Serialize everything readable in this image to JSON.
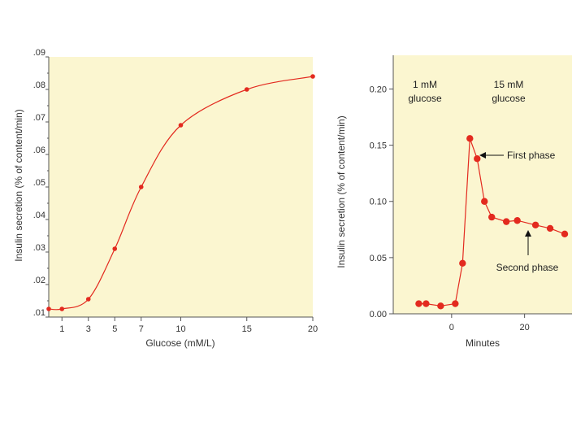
{
  "colors": {
    "panel_bg": "#fbf6d0",
    "series": "#e32a1f",
    "axis": "#555555",
    "text": "#333333"
  },
  "chart_data": [
    {
      "type": "line",
      "title": "",
      "xlabel": "Glucose (mM/L)",
      "ylabel": "Insulin secretion (% of content/min)",
      "xlim": [
        0,
        20
      ],
      "ylim": [
        0.01,
        0.09
      ],
      "x_ticks": [
        1,
        3,
        5,
        7,
        10,
        15,
        20
      ],
      "x_tick_labels": [
        "1",
        "3",
        "5",
        "7",
        "10",
        "15",
        "20"
      ],
      "y_ticks": [
        0.01,
        0.02,
        0.03,
        0.04,
        0.05,
        0.06,
        0.07,
        0.08,
        0.09
      ],
      "y_tick_labels": [
        ".01",
        ".02",
        ".03",
        ".04",
        ".05",
        ".06",
        ".07",
        ".08",
        ".09"
      ],
      "series": [
        {
          "name": "Insulin secretion",
          "x": [
            0,
            1,
            3,
            5,
            7,
            10,
            15,
            20
          ],
          "y": [
            0.0125,
            0.0125,
            0.0155,
            0.031,
            0.05,
            0.069,
            0.08,
            0.084
          ]
        }
      ]
    },
    {
      "type": "line",
      "title": "",
      "xlabel": "Minutes",
      "ylabel": "Insulin secretion (% of content/min)",
      "xlim": [
        -16,
        33
      ],
      "ylim": [
        0,
        0.23
      ],
      "x_ticks": [
        0,
        20
      ],
      "x_tick_labels": [
        "0",
        "20"
      ],
      "y_ticks": [
        0,
        0.05,
        0.1,
        0.15,
        0.2
      ],
      "y_tick_labels": [
        "0.00",
        "0.05",
        "0.10",
        "0.15",
        "0.20"
      ],
      "series": [
        {
          "name": "Insulin secretion",
          "x": [
            -9,
            -7,
            -3,
            1,
            3,
            5,
            7,
            9,
            11,
            15,
            18,
            23,
            27,
            31
          ],
          "y": [
            0.009,
            0.009,
            0.007,
            0.009,
            0.045,
            0.156,
            0.138,
            0.1,
            0.086,
            0.082,
            0.083,
            0.079,
            0.076,
            0.071
          ]
        }
      ],
      "annotations": {
        "region1_line1": "1 mM",
        "region1_line2": "glucose",
        "region2_line1": "15 mM",
        "region2_line2": "glucose",
        "first_phase": "First phase",
        "second_phase": "Second phase"
      }
    }
  ]
}
